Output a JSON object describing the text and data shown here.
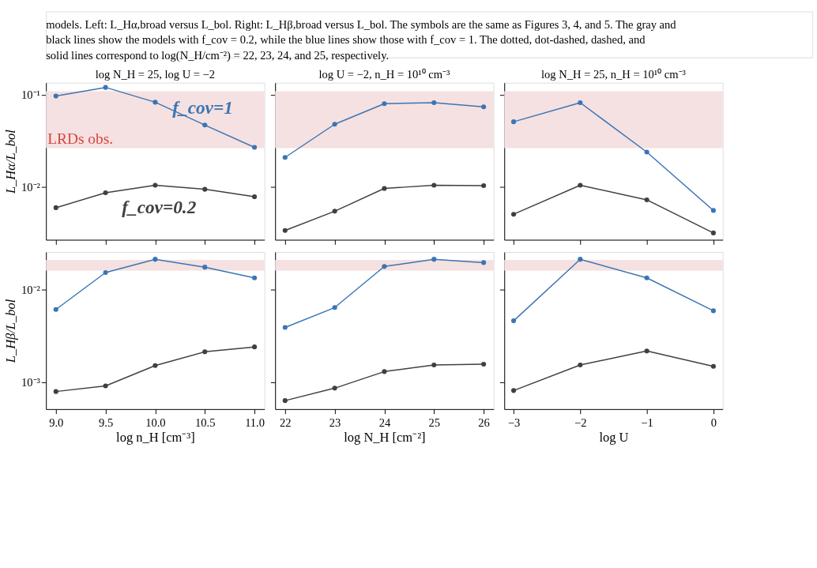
{
  "chart_data": [
    {
      "type": "line",
      "title": "log N_H = 25, log U = −2",
      "ylabel": "L_Hα/L_bol",
      "x": [
        9.0,
        9.5,
        10.0,
        10.5,
        11.0
      ],
      "xlim": [
        8.9,
        11.1
      ],
      "xticks": [
        9,
        9.5,
        10,
        10.5,
        11
      ],
      "ylim": [
        0.0027,
        0.135
      ],
      "yticks": [
        {
          "value": 0.1,
          "label": "10⁻¹"
        },
        {
          "value": 0.01,
          "label": "10⁻²"
        }
      ],
      "log": "y",
      "tick_labels": "y",
      "marker": "circle",
      "line_style": "solid",
      "grid": false,
      "series": [
        {
          "color": "#3a75b5",
          "values": [
            0.097,
            0.12,
            0.083,
            0.047,
            0.027
          ]
        },
        {
          "color": "#404040",
          "values": [
            0.006,
            0.0087,
            0.0105,
            0.0095,
            0.0079
          ]
        }
      ],
      "bands": [
        {
          "axis": "y",
          "from": 0.0265,
          "to": 0.109,
          "label": "LRDs obs.",
          "color": "#f5e1e1"
        }
      ],
      "annotations": [
        "models. Left: L_Hα,broad versus L_bol. Right: L_Hβ,broad versus L_bol. The symbols are the same as Figures 3, 4, and 5. The gray and black lines show the models with f_cov = 0.2, while the blue lines show those with f_cov = 1. The dotted, dot-dashed, dashed, and solid lines correspond to log(N_H/cm⁻²) = 22, 23, 24, and 25, respectively.",
        "f_cov=1",
        "f_cov=0.2"
      ]
    },
    {
      "type": "line",
      "title": "log U = −2, n_H = 10¹⁰ cm⁻³",
      "x": [
        22,
        23,
        24,
        25,
        26
      ],
      "xlim": [
        21.8,
        26.2
      ],
      "xticks": [
        22,
        23,
        24,
        25,
        26
      ],
      "ylim": [
        0.0027,
        0.135
      ],
      "yticks": [
        0.1,
        0.01
      ],
      "log": "y",
      "tick_labels": false,
      "marker": "circle",
      "line_style": "solid",
      "grid": false,
      "series": [
        {
          "color": "#3a75b5",
          "values": [
            0.021,
            0.048,
            0.08,
            0.082,
            0.074
          ]
        },
        {
          "color": "#404040",
          "values": [
            0.0034,
            0.0055,
            0.0097,
            0.0105,
            0.0104
          ]
        }
      ],
      "bands": [
        {
          "axis": "y",
          "from": 0.0265,
          "to": 0.109,
          "color": "#f5e1e1"
        }
      ]
    },
    {
      "type": "line",
      "title": "log N_H = 25, n_H = 10¹⁰ cm⁻³",
      "x": [
        -3,
        -2,
        -1,
        0
      ],
      "xlim": [
        -3.14,
        0.14
      ],
      "xticks": [
        -3,
        -2,
        -1,
        0
      ],
      "ylim": [
        0.0027,
        0.135
      ],
      "yticks": [
        0.1,
        0.01
      ],
      "log": "y",
      "tick_labels": false,
      "marker": "circle",
      "line_style": "solid",
      "grid": false,
      "series": [
        {
          "color": "#3a75b5",
          "values": [
            0.051,
            0.082,
            0.024,
            0.0056
          ]
        },
        {
          "color": "#404040",
          "values": [
            0.0051,
            0.0105,
            0.0073,
            0.0032
          ]
        }
      ],
      "bands": [
        {
          "axis": "y",
          "from": 0.0265,
          "to": 0.109,
          "color": "#f5e1e1"
        }
      ]
    },
    {
      "type": "line",
      "xlabel": "log n_H [cm⁻³]",
      "ylabel": "L_Hβ/L_bol",
      "x": [
        9.0,
        9.5,
        10.0,
        10.5,
        11.0
      ],
      "xlim": [
        8.9,
        11.1
      ],
      "xticks": [
        {
          "value": 9,
          "label": "9.0"
        },
        {
          "value": 9.5,
          "label": "9.5"
        },
        {
          "value": 10,
          "label": "10.0"
        },
        {
          "value": 10.5,
          "label": "10.5"
        },
        {
          "value": 11,
          "label": "11.0"
        }
      ],
      "ylim": [
        0.00051,
        0.0255
      ],
      "yticks": [
        {
          "value": 0.01,
          "label": "10⁻²"
        },
        {
          "value": 0.001,
          "label": "10⁻³"
        }
      ],
      "log": "y",
      "marker": "circle",
      "line_style": "solid",
      "grid": false,
      "series": [
        {
          "color": "#3a75b5",
          "values": [
            0.0061,
            0.0153,
            0.0213,
            0.0175,
            0.0134
          ]
        },
        {
          "color": "#404040",
          "values": [
            0.00079,
            0.00091,
            0.00151,
            0.00213,
            0.0024
          ]
        }
      ],
      "bands": [
        {
          "axis": "y",
          "from": 0.0161,
          "to": 0.021,
          "color": "#f5e1e1"
        }
      ]
    },
    {
      "type": "line",
      "xlabel": "log N_H [cm⁻²]",
      "x": [
        22,
        23,
        24,
        25,
        26
      ],
      "xlim": [
        21.8,
        26.2
      ],
      "xticks": [
        {
          "value": 22,
          "label": "22"
        },
        {
          "value": 23,
          "label": "23"
        },
        {
          "value": 24,
          "label": "24"
        },
        {
          "value": 25,
          "label": "25"
        },
        {
          "value": 26,
          "label": "26"
        }
      ],
      "ylim": [
        0.00051,
        0.0255
      ],
      "yticks": [
        0.01,
        0.001
      ],
      "log": "y",
      "tick_labels": "x",
      "marker": "circle",
      "line_style": "solid",
      "grid": false,
      "series": [
        {
          "color": "#3a75b5",
          "values": [
            0.0039,
            0.0064,
            0.0178,
            0.0213,
            0.0196
          ]
        },
        {
          "color": "#404040",
          "values": [
            0.00063,
            0.00086,
            0.0013,
            0.00153,
            0.00156
          ]
        }
      ],
      "bands": [
        {
          "axis": "y",
          "from": 0.0161,
          "to": 0.021,
          "color": "#f5e1e1"
        }
      ]
    },
    {
      "type": "line",
      "xlabel": "log U",
      "x": [
        -3,
        -2,
        -1,
        0
      ],
      "xlim": [
        -3.14,
        0.14
      ],
      "xticks": [
        {
          "value": -3,
          "label": "−3"
        },
        {
          "value": -2,
          "label": "−2"
        },
        {
          "value": -1,
          "label": "−1"
        },
        {
          "value": 0,
          "label": "0"
        }
      ],
      "ylim": [
        0.00051,
        0.0255
      ],
      "yticks": [
        0.01,
        0.001
      ],
      "log": "y",
      "tick_labels": "x",
      "marker": "circle",
      "line_style": "solid",
      "grid": false,
      "series": [
        {
          "color": "#3a75b5",
          "values": [
            0.0046,
            0.0213,
            0.0134,
            0.0059
          ]
        },
        {
          "color": "#404040",
          "values": [
            0.00081,
            0.00153,
            0.00217,
            0.00148
          ]
        }
      ],
      "bands": [
        {
          "axis": "y",
          "from": 0.0161,
          "to": 0.021,
          "color": "#f5e1e1"
        }
      ]
    }
  ]
}
